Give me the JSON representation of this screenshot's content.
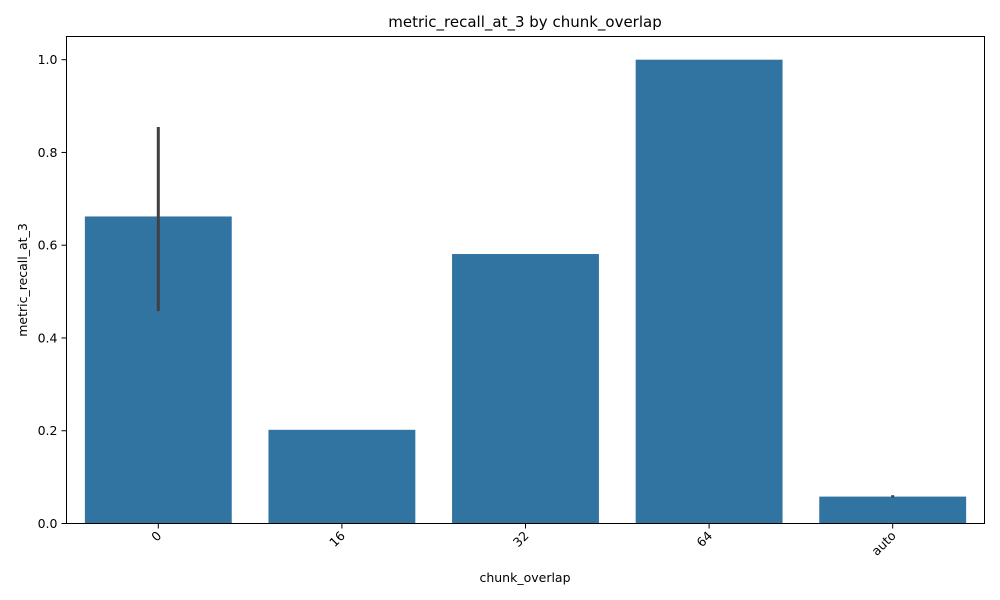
{
  "chart_data": {
    "type": "bar",
    "title": "metric_recall_at_3 by chunk_overlap",
    "xlabel": "chunk_overlap",
    "ylabel": "metric_recall_at_3",
    "categories": [
      "0",
      "16",
      "32",
      "64",
      "auto"
    ],
    "values": [
      0.662,
      0.202,
      0.581,
      1.0,
      0.058
    ],
    "error_bars": [
      {
        "low": 0.458,
        "high": 0.855
      },
      null,
      null,
      null,
      {
        "low": 0.056,
        "high": 0.061
      }
    ],
    "ylim": [
      0,
      1.05
    ],
    "yticks": [
      0.0,
      0.2,
      0.4,
      0.6,
      0.8,
      1.0
    ],
    "ytick_labels": [
      "0.0",
      "0.2",
      "0.4",
      "0.6",
      "0.8",
      "1.0"
    ],
    "xtick_rotation": 45,
    "grid": false,
    "bar_color": "#3274a1",
    "errorbar_color": "#404040"
  }
}
